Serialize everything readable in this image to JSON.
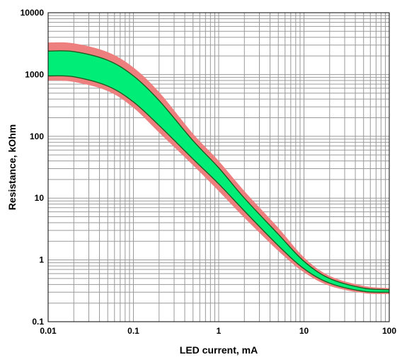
{
  "chart_data": {
    "type": "area",
    "title": "",
    "xlabel": "LED current, mA",
    "ylabel": "Resistance, kOhm",
    "x_scale": "log",
    "y_scale": "log",
    "xlim": [
      0.01,
      100
    ],
    "ylim": [
      0.1,
      10000
    ],
    "x_ticks": [
      "0.01",
      "0.1",
      "1",
      "10",
      "100"
    ],
    "y_ticks": [
      "0.1",
      "1",
      "10",
      "100",
      "1000",
      "10000"
    ],
    "grid": true,
    "legend": "none",
    "colors": {
      "inner_band": "#00ee77",
      "outer_band": "#ee7f7f",
      "curve_line": "#1f5a1f",
      "grid": "#9a9a9a"
    },
    "x": [
      0.01,
      0.02,
      0.05,
      0.1,
      0.2,
      0.5,
      1,
      2,
      5,
      10,
      20,
      50,
      100
    ],
    "series": [
      {
        "role": "tolerance-upper",
        "values": [
          3300,
          3200,
          2300,
          1300,
          520,
          110,
          40,
          13,
          3.3,
          1.1,
          0.55,
          0.38,
          0.35
        ]
      },
      {
        "role": "typical-upper",
        "values": [
          2400,
          2350,
          1700,
          950,
          380,
          85,
          31,
          10,
          2.6,
          0.95,
          0.5,
          0.35,
          0.33
        ]
      },
      {
        "role": "typical-lower",
        "values": [
          950,
          920,
          650,
          360,
          150,
          43,
          17,
          6.2,
          1.7,
          0.72,
          0.42,
          0.31,
          0.3
        ]
      },
      {
        "role": "tolerance-lower",
        "values": [
          800,
          760,
          540,
          290,
          115,
          34,
          13,
          4.8,
          1.4,
          0.63,
          0.38,
          0.29,
          0.28
        ]
      }
    ]
  }
}
